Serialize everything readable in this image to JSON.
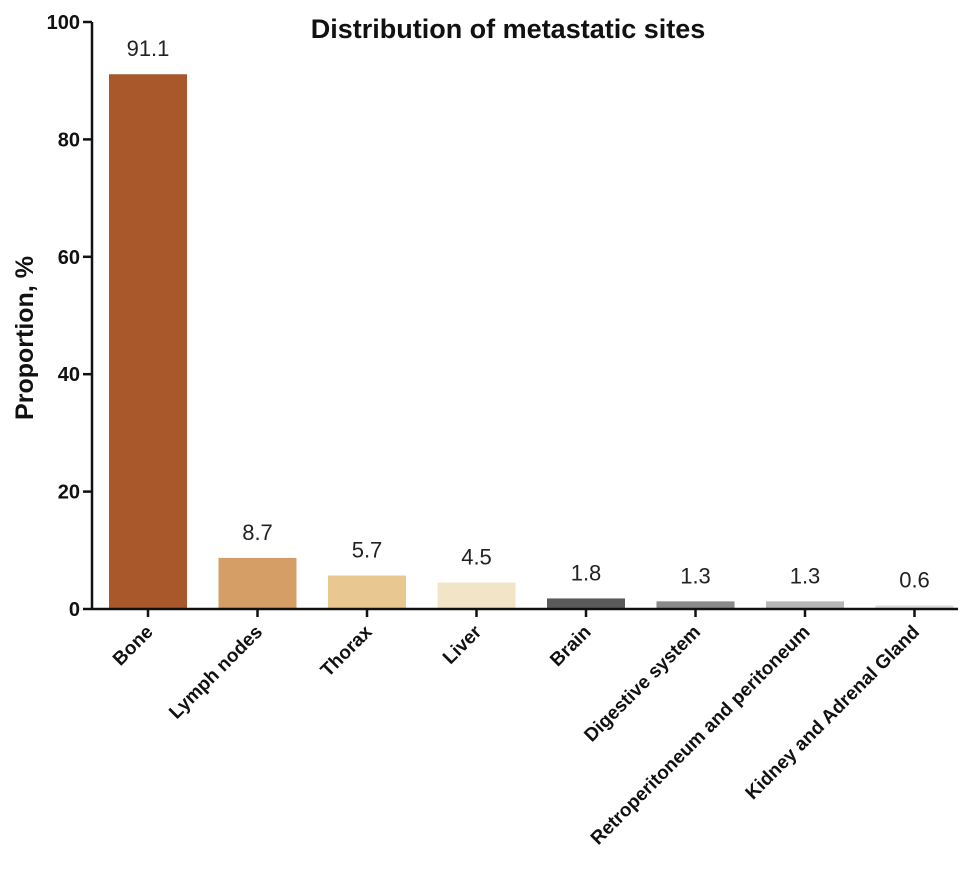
{
  "chart_data": {
    "type": "bar",
    "title": "Distribution of metastatic sites",
    "xlabel": "",
    "ylabel": "Proportion, %",
    "ylim": [
      0,
      100
    ],
    "yticks": [
      0,
      20,
      40,
      60,
      80,
      100
    ],
    "categories": [
      "Bone",
      "Lymph nodes",
      "Thorax",
      "Liver",
      "Brain",
      "Digestive system",
      "Retroperitoneum and peritoneum",
      "Kidney and Adrenal Gland"
    ],
    "values": [
      91.1,
      8.7,
      5.7,
      4.5,
      1.8,
      1.3,
      1.3,
      0.6
    ],
    "data_labels": [
      "91.1",
      "8.7",
      "5.7",
      "4.5",
      "1.8",
      "1.3",
      "1.3",
      "0.6"
    ],
    "colors": [
      "#a8582a",
      "#d49e66",
      "#e8c890",
      "#f2e4c6",
      "#5a5a5a",
      "#8a8a8a",
      "#b6b6b6",
      "#dcdcdc"
    ],
    "grid": false,
    "legend": "none"
  }
}
